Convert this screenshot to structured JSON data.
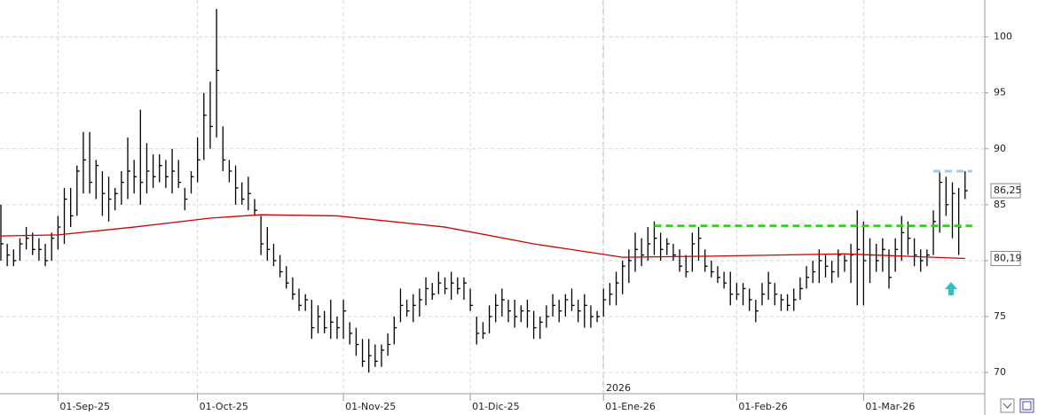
{
  "chart_data": {
    "type": "ohlc",
    "color": "#000000",
    "categories": [
      null,
      null,
      null,
      null,
      null,
      null,
      null,
      null,
      null,
      "01-Sep-25",
      null,
      null,
      null,
      null,
      null,
      null,
      null,
      null,
      null,
      null,
      null,
      null,
      null,
      null,
      null,
      null,
      null,
      null,
      null,
      null,
      null,
      "01-Oct-25",
      null,
      null,
      null,
      null,
      null,
      null,
      null,
      null,
      null,
      null,
      null,
      null,
      null,
      null,
      null,
      null,
      null,
      null,
      null,
      null,
      null,
      null,
      "01-Nov-25",
      null,
      null,
      null,
      null,
      null,
      null,
      null,
      null,
      null,
      null,
      null,
      null,
      null,
      null,
      null,
      null,
      null,
      null,
      null,
      "01-Dic-25",
      null,
      null,
      null,
      null,
      null,
      null,
      null,
      null,
      null,
      null,
      null,
      null,
      null,
      null,
      null,
      null,
      null,
      null,
      null,
      null,
      "01-Ene-26",
      null,
      null,
      null,
      null,
      null,
      null,
      null,
      null,
      null,
      null,
      null,
      null,
      null,
      null,
      null,
      null,
      null,
      null,
      null,
      null,
      "01-Feb-26",
      null,
      null,
      null,
      null,
      null,
      null,
      null,
      null,
      null,
      null,
      null,
      null,
      null,
      null,
      null,
      null,
      null,
      null,
      null,
      "01-Mar-26",
      null,
      null,
      null,
      null,
      null,
      null,
      null,
      null,
      null,
      null,
      null,
      null,
      null,
      null,
      null,
      null
    ],
    "high": [
      85,
      81.5,
      81,
      82,
      83,
      82.5,
      82,
      81.5,
      82.5,
      84,
      86.5,
      86.5,
      88.5,
      91.5,
      91.5,
      89,
      88,
      87.5,
      86.5,
      88,
      91,
      89,
      93.5,
      90.5,
      89.5,
      89.5,
      89,
      90,
      89,
      86.5,
      88,
      91,
      95,
      96,
      102.5,
      92,
      89,
      88.5,
      87,
      87.5,
      85.5,
      84,
      83,
      81.5,
      80.5,
      79.5,
      78.5,
      77.5,
      77,
      76.5,
      76,
      75.5,
      76.5,
      75,
      76.5,
      74.5,
      74,
      73,
      73,
      72.5,
      72.5,
      73.5,
      75,
      77.5,
      76.5,
      77,
      77.5,
      78.5,
      78,
      79,
      78.5,
      79,
      78.5,
      78.5,
      77.5,
      75,
      74.5,
      76,
      77,
      77.5,
      76.5,
      76.5,
      76,
      76.5,
      75.5,
      75,
      76,
      77,
      76.5,
      77,
      77.5,
      76.5,
      77,
      76,
      75.5,
      77.5,
      78,
      79,
      80,
      81,
      82.5,
      82,
      83,
      83.5,
      82.5,
      82,
      81.5,
      81,
      80.5,
      82.5,
      83,
      81,
      80,
      79.5,
      79,
      79,
      78,
      78,
      77.5,
      76.5,
      78,
      79,
      78,
      77,
      77,
      77.5,
      78.5,
      79.5,
      80,
      81,
      80.5,
      80,
      81,
      80.5,
      81.5,
      84.5,
      83.5,
      82,
      81.5,
      82,
      81,
      82,
      84,
      83.5,
      82,
      81,
      81,
      84.5,
      88,
      87.5,
      87,
      86.5,
      88
    ],
    "low": [
      80,
      79.5,
      79.5,
      80,
      81,
      80.5,
      80,
      79.5,
      80,
      81,
      81.5,
      83,
      84,
      86,
      86,
      85.5,
      84,
      83.5,
      84.5,
      85,
      85.5,
      86,
      85,
      86,
      86.5,
      87,
      86.5,
      86,
      86.5,
      84.5,
      86,
      87,
      89,
      90,
      91,
      88,
      87,
      85,
      85,
      84.5,
      84,
      80.5,
      80,
      79.5,
      78.5,
      77.5,
      76.5,
      75.5,
      75.5,
      73,
      73.5,
      73.5,
      73,
      73,
      73,
      72.5,
      71.5,
      70.5,
      70,
      70.5,
      70.5,
      71.5,
      72.5,
      74.5,
      75,
      74.5,
      75,
      76,
      76.5,
      77,
      77,
      76.5,
      77,
      76.5,
      75.5,
      72.5,
      73,
      73.5,
      74.5,
      75,
      74.5,
      74,
      74.5,
      74,
      73,
      73,
      74,
      75,
      74.5,
      75,
      75.5,
      74.5,
      74,
      74,
      74.5,
      75,
      76,
      76,
      77,
      78,
      79,
      79.5,
      80,
      80.5,
      80,
      80.5,
      80,
      79,
      78.5,
      79,
      80,
      79,
      78.5,
      78,
      77.5,
      76,
      76.5,
      76,
      75.5,
      74.5,
      76,
      76.5,
      76,
      75.5,
      75.5,
      75.5,
      76.5,
      77.5,
      78,
      78,
      78.5,
      78,
      78.5,
      79,
      78,
      76,
      76,
      78,
      79,
      79,
      77.5,
      79,
      80,
      80.5,
      79.5,
      79,
      79.5,
      80.5,
      82.5,
      84,
      82,
      80.5,
      85.5
    ],
    "close": [
      81.5,
      80.5,
      80,
      81.5,
      82,
      81,
      81,
      80,
      82,
      83,
      85.5,
      84,
      88,
      89,
      87,
      88.5,
      86,
      85.5,
      86,
      87,
      88,
      87.5,
      87,
      88,
      87.5,
      88.5,
      87.5,
      88,
      87,
      85.5,
      87.5,
      89,
      93,
      92,
      97,
      89,
      88,
      86.5,
      85.5,
      86,
      84.5,
      81.5,
      81,
      80,
      79,
      78,
      77,
      76,
      76.5,
      74,
      75,
      74,
      74.5,
      74,
      75.5,
      73.5,
      72.5,
      71,
      71.5,
      71,
      72,
      72.5,
      74,
      76,
      75.5,
      76,
      76.5,
      77.5,
      77,
      78,
      77.5,
      78,
      77.5,
      78,
      76,
      73.5,
      73.5,
      75,
      76,
      76.5,
      75.5,
      75,
      75.5,
      75.5,
      74,
      74.5,
      75,
      76,
      75.5,
      76.5,
      76,
      75.5,
      76,
      75,
      75,
      76.5,
      77,
      78,
      79.5,
      80,
      81,
      80.5,
      81.5,
      82,
      81,
      81.5,
      80.5,
      79.5,
      79,
      81.5,
      82,
      79.5,
      79,
      78.5,
      78,
      77,
      77,
      77.5,
      76.5,
      75.5,
      77,
      78,
      77,
      76.5,
      76,
      76.5,
      77.5,
      78.5,
      79,
      80,
      79.5,
      79,
      80.5,
      80,
      80.5,
      81,
      80,
      80.5,
      80,
      81,
      78.5,
      81,
      82.5,
      82,
      80.5,
      80,
      80.5,
      83.5,
      87,
      85,
      86,
      83,
      86.25
    ],
    "last_price": {
      "value": 86.25,
      "label": "86,25"
    },
    "ma": {
      "color": "#cc0000",
      "x": [
        0,
        9,
        21,
        33,
        41,
        53,
        70,
        84,
        98,
        112,
        133,
        152
      ],
      "values": [
        82.2,
        82.3,
        83.0,
        83.8,
        84.1,
        84.0,
        83.0,
        81.5,
        80.3,
        80.4,
        80.6,
        80.19
      ],
      "last_label": "80,19"
    },
    "levels": [
      {
        "value": 83.1,
        "from": 103,
        "to": 152,
        "color": "#22dd00"
      },
      {
        "value": 88,
        "from": 147,
        "to": 152,
        "color": "#a8c8e8"
      }
    ],
    "year_label": "2026",
    "ylim": [
      68.1,
      103.3
    ],
    "yticks": [
      70,
      75,
      80,
      85,
      90,
      95,
      100
    ],
    "grid": true
  }
}
